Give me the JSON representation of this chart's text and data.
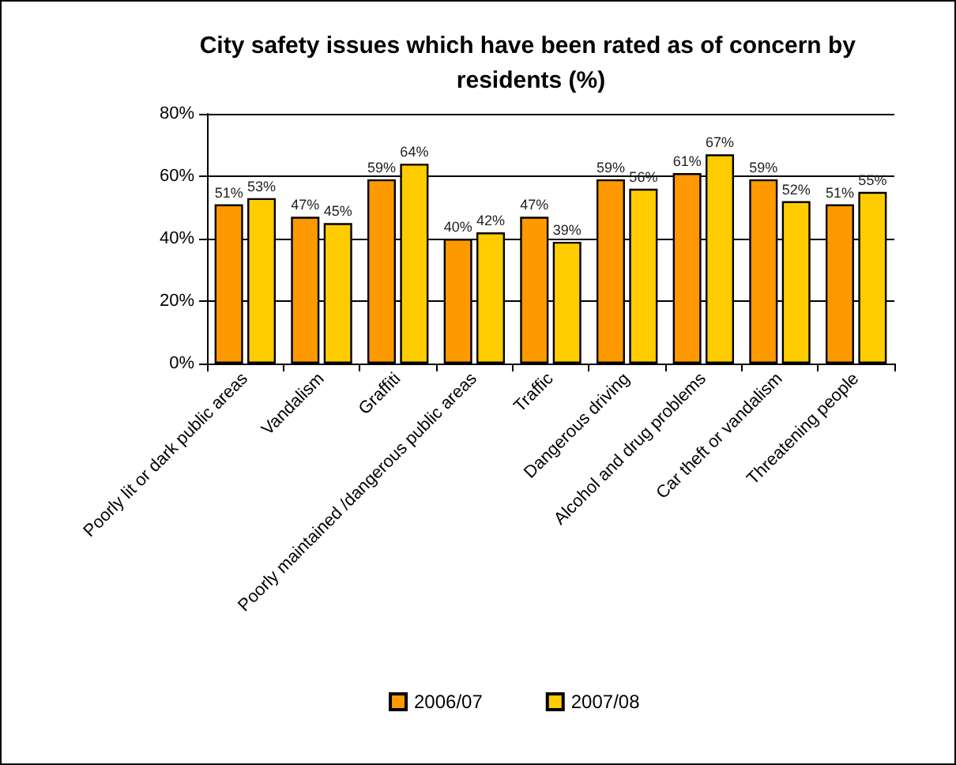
{
  "chart_data": {
    "type": "bar",
    "title": "City safety issues which have been rated as of concern by residents (%)",
    "categories": [
      "Poorly lit or dark public areas",
      "Vandalism",
      "Graffiti",
      "Poorly maintained /dangerous public areas",
      "Traffic",
      "Dangerous driving",
      "Alcohol and drug problems",
      "Car theft or vandalism",
      "Threatening people"
    ],
    "series": [
      {
        "name": "2006/07",
        "color": "#ff9900",
        "values": [
          51,
          47,
          59,
          40,
          47,
          59,
          61,
          59,
          51
        ],
        "value_labels": [
          "51%",
          "47%",
          "59%",
          "40%",
          "47%",
          "59%",
          "61%",
          "59%",
          "51%"
        ]
      },
      {
        "name": "2007/08",
        "color": "#ffcc00",
        "values": [
          53,
          45,
          64,
          42,
          39,
          56,
          67,
          52,
          55
        ],
        "value_labels": [
          "53%",
          "45%",
          "64%",
          "42%",
          "39%",
          "56%",
          "67%",
          "52%",
          "55%"
        ]
      }
    ],
    "ylim": [
      0,
      80
    ],
    "yticks": [
      {
        "value": 0,
        "label": "0%"
      },
      {
        "value": 20,
        "label": "20%"
      },
      {
        "value": 40,
        "label": "40%"
      },
      {
        "value": 60,
        "label": "60%"
      },
      {
        "value": 80,
        "label": "80%"
      }
    ],
    "grid": "y",
    "legend": "bottom"
  }
}
